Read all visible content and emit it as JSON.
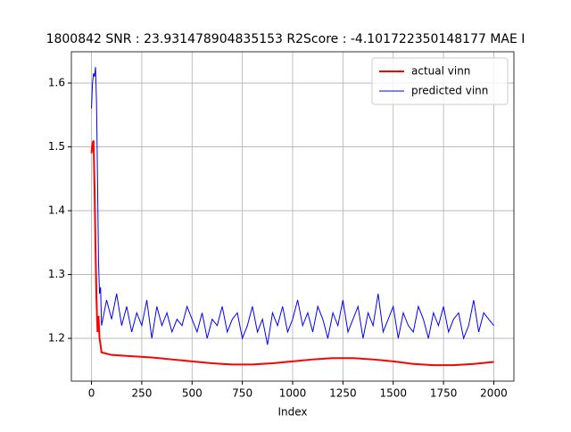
{
  "chart_data": {
    "type": "line",
    "title": "1800842  SNR : 23.931478904835153 R2Score : -4.101722350148177 MAE I",
    "x_label": "Index",
    "xlim": [
      -100,
      2100
    ],
    "xticks": [
      0,
      250,
      500,
      750,
      1000,
      1250,
      1500,
      1750,
      2000
    ],
    "ylim": [
      1.133,
      1.649
    ],
    "yticks": [
      {
        "value": 1.2,
        "label": "1.2"
      },
      {
        "value": 1.3,
        "label": "1.3"
      },
      {
        "value": 1.4,
        "label": "1.4"
      },
      {
        "value": 1.5,
        "label": "1.5"
      },
      {
        "value": 1.6,
        "label": "1.6"
      }
    ],
    "grid": true,
    "legend": "upper right",
    "series": [
      {
        "name": "actual vinn",
        "color": "#ff0000",
        "width": 2,
        "x": [
          0,
          5,
          10,
          15,
          20,
          25,
          30,
          35,
          40,
          45,
          50,
          100,
          200,
          300,
          400,
          500,
          600,
          700,
          800,
          900,
          1000,
          1100,
          1200,
          1300,
          1400,
          1500,
          1600,
          1700,
          1800,
          1900,
          2000
        ],
        "values": [
          1.49,
          1.505,
          1.51,
          1.44,
          1.34,
          1.26,
          1.21,
          1.235,
          1.2,
          1.19,
          1.178,
          1.174,
          1.172,
          1.17,
          1.167,
          1.164,
          1.161,
          1.159,
          1.159,
          1.161,
          1.164,
          1.167,
          1.169,
          1.169,
          1.167,
          1.164,
          1.16,
          1.158,
          1.158,
          1.16,
          1.163
        ]
      },
      {
        "name": "predicted vinn",
        "color": "#0000ff",
        "width": 1,
        "x": [
          0,
          5,
          10,
          15,
          20,
          25,
          30,
          35,
          40,
          45,
          50,
          75,
          100,
          125,
          150,
          175,
          200,
          225,
          250,
          275,
          300,
          325,
          350,
          375,
          400,
          425,
          450,
          475,
          500,
          525,
          550,
          575,
          600,
          625,
          650,
          675,
          700,
          725,
          750,
          775,
          800,
          825,
          850,
          875,
          900,
          925,
          950,
          975,
          1000,
          1025,
          1050,
          1075,
          1100,
          1125,
          1150,
          1175,
          1200,
          1225,
          1250,
          1275,
          1300,
          1325,
          1350,
          1375,
          1400,
          1425,
          1450,
          1475,
          1500,
          1525,
          1550,
          1575,
          1600,
          1625,
          1650,
          1675,
          1700,
          1725,
          1750,
          1775,
          1800,
          1825,
          1850,
          1875,
          1900,
          1925,
          1950,
          1975,
          2000
        ],
        "values": [
          1.56,
          1.6,
          1.615,
          1.61,
          1.625,
          1.57,
          1.45,
          1.32,
          1.27,
          1.28,
          1.22,
          1.26,
          1.23,
          1.27,
          1.22,
          1.25,
          1.21,
          1.24,
          1.22,
          1.26,
          1.2,
          1.25,
          1.22,
          1.24,
          1.21,
          1.23,
          1.22,
          1.25,
          1.23,
          1.21,
          1.24,
          1.2,
          1.23,
          1.22,
          1.25,
          1.21,
          1.23,
          1.24,
          1.2,
          1.22,
          1.25,
          1.21,
          1.23,
          1.19,
          1.24,
          1.22,
          1.25,
          1.21,
          1.23,
          1.26,
          1.22,
          1.24,
          1.21,
          1.25,
          1.23,
          1.2,
          1.24,
          1.22,
          1.26,
          1.21,
          1.23,
          1.25,
          1.2,
          1.24,
          1.22,
          1.27,
          1.21,
          1.23,
          1.25,
          1.2,
          1.24,
          1.22,
          1.21,
          1.25,
          1.23,
          1.2,
          1.24,
          1.22,
          1.25,
          1.21,
          1.23,
          1.24,
          1.2,
          1.22,
          1.26,
          1.21,
          1.24,
          1.23,
          1.22
        ]
      }
    ]
  }
}
